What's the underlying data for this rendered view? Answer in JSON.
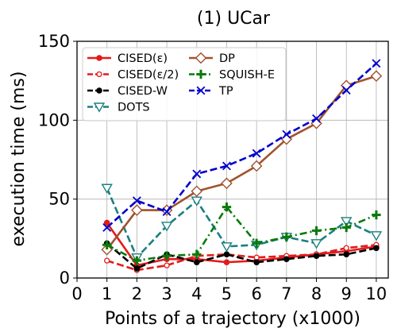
{
  "chart_data": {
    "type": "line",
    "title": "(1) UCar",
    "xlabel": "Points of a trajectory (x1000)",
    "ylabel": "execution time (ms)",
    "xlim": [
      0,
      10.4
    ],
    "ylim": [
      0,
      150
    ],
    "xticks": [
      0,
      1,
      2,
      3,
      4,
      5,
      6,
      7,
      8,
      9,
      10
    ],
    "yticks": [
      0,
      50,
      100,
      150
    ],
    "grid": true,
    "legend_position": "top-left",
    "x": [
      1,
      2,
      3,
      4,
      5,
      6,
      7,
      8,
      9,
      10
    ],
    "series": [
      {
        "name": "CISED(ε)",
        "color": "#e31a1c",
        "dash": "solid",
        "marker": "circle",
        "values": [
          35,
          8,
          12,
          12,
          10,
          11,
          13,
          15,
          17,
          20
        ]
      },
      {
        "name": "CISED(ε/2)",
        "color": "#e31a1c",
        "dash": "dashed",
        "marker": "circle-open",
        "values": [
          11,
          5,
          8,
          14,
          15,
          13,
          14,
          15,
          19,
          21
        ]
      },
      {
        "name": "CISED-W",
        "color": "#000000",
        "dash": "dashed",
        "marker": "circle",
        "values": [
          22,
          6,
          15,
          10,
          15,
          10,
          12,
          14,
          15,
          19
        ]
      },
      {
        "name": "DOTS",
        "color": "#1b7f7f",
        "dash": "dashed",
        "marker": "triangle-down",
        "values": [
          57,
          13,
          33,
          49,
          20,
          21,
          26,
          22,
          36,
          27
        ]
      },
      {
        "name": "DP",
        "color": "#a0522d",
        "dash": "solid",
        "marker": "diamond",
        "values": [
          18,
          43,
          43,
          55,
          60,
          71,
          88,
          98,
          122,
          128
        ]
      },
      {
        "name": "SQUISH-E",
        "color": "#0a7a0a",
        "dash": "dashdot",
        "marker": "plus",
        "values": [
          21,
          11,
          14,
          15,
          45,
          22,
          26,
          30,
          32,
          40
        ]
      },
      {
        "name": "TP",
        "color": "#0000cc",
        "dash": "dashed",
        "marker": "x",
        "values": [
          32,
          49,
          42,
          66,
          71,
          79,
          91,
          101,
          119,
          136
        ]
      }
    ]
  }
}
